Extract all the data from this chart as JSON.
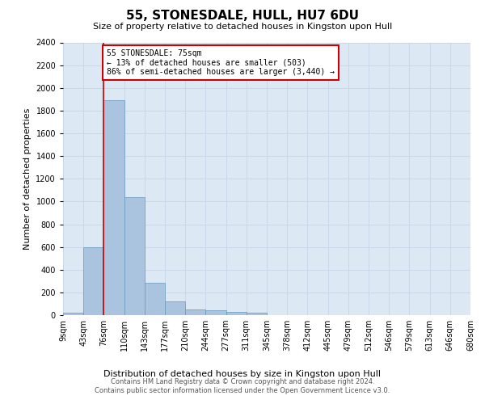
{
  "title": "55, STONESDALE, HULL, HU7 6DU",
  "subtitle": "Size of property relative to detached houses in Kingston upon Hull",
  "xlabel": "Distribution of detached houses by size in Kingston upon Hull",
  "ylabel": "Number of detached properties",
  "footer_line1": "Contains HM Land Registry data © Crown copyright and database right 2024.",
  "footer_line2": "Contains public sector information licensed under the Open Government Licence v3.0.",
  "bin_labels": [
    "9sqm",
    "43sqm",
    "76sqm",
    "110sqm",
    "143sqm",
    "177sqm",
    "210sqm",
    "244sqm",
    "277sqm",
    "311sqm",
    "345sqm",
    "378sqm",
    "412sqm",
    "445sqm",
    "479sqm",
    "512sqm",
    "546sqm",
    "579sqm",
    "613sqm",
    "646sqm",
    "680sqm"
  ],
  "bar_values": [
    20,
    600,
    1890,
    1035,
    285,
    120,
    50,
    42,
    28,
    18,
    0,
    0,
    0,
    0,
    0,
    0,
    0,
    0,
    0,
    0
  ],
  "bar_color": "#aac4df",
  "bar_edge_color": "#6699bb",
  "grid_color": "#c8d8e8",
  "background_color": "#dce8f4",
  "annotation_text": "55 STONESDALE: 75sqm\n← 13% of detached houses are smaller (503)\n86% of semi-detached houses are larger (3,440) →",
  "annotation_box_color": "#cc0000",
  "ylim": [
    0,
    2400
  ],
  "yticks": [
    0,
    200,
    400,
    600,
    800,
    1000,
    1200,
    1400,
    1600,
    1800,
    2000,
    2200,
    2400
  ],
  "title_fontsize": 11,
  "subtitle_fontsize": 8,
  "ylabel_fontsize": 8,
  "xlabel_fontsize": 8,
  "tick_fontsize": 7,
  "footer_fontsize": 6
}
